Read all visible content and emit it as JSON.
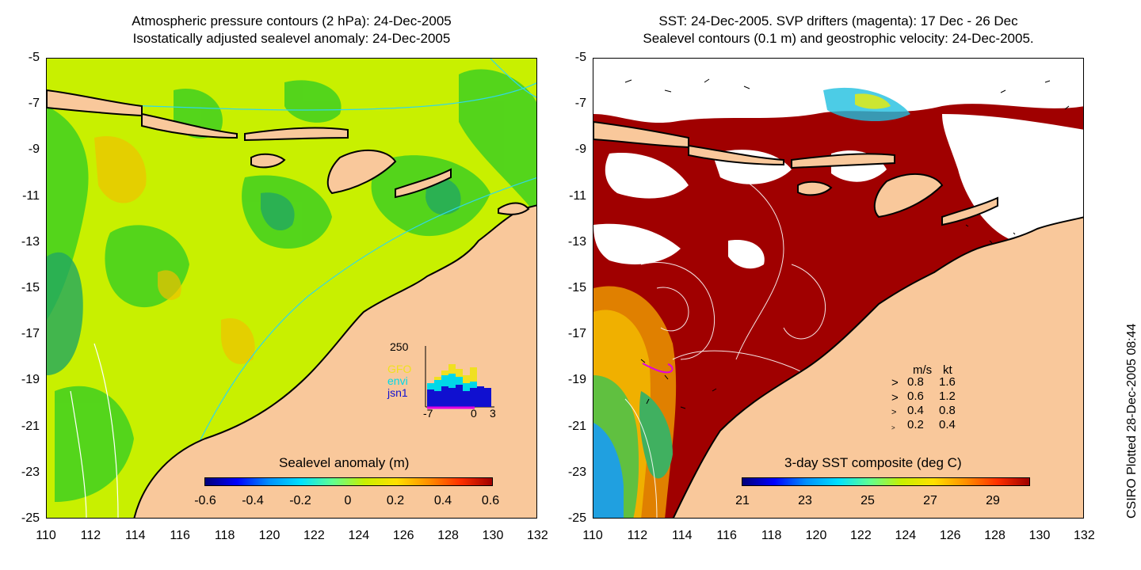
{
  "left_panel": {
    "title_line1": "Atmospheric pressure contours (2 hPa): 24-Dec-2005",
    "title_line2": "Isostatically adjusted sealevel anomaly: 24-Dec-2005",
    "colorbar_title": "Sealevel anomaly (m)",
    "colorbar_ticks": [
      "-0.6",
      "-0.4",
      "-0.2",
      "0",
      "0.2",
      "0.4",
      "0.6"
    ],
    "inset": {
      "ymax_label": "250",
      "x_ticks": [
        "-7",
        "0",
        "3"
      ],
      "series": [
        "GFO",
        "envi",
        "jsn1"
      ],
      "series_colors": [
        "#f0e020",
        "#00d8e8",
        "#1010d0"
      ]
    }
  },
  "right_panel": {
    "title_line1": "SST: 24-Dec-2005. SVP drifters (magenta): 17 Dec - 26 Dec",
    "title_line2": "Sealevel contours (0.1 m) and geostrophic velocity: 24-Dec-2005.",
    "colorbar_title": "3-day SST composite (deg C)",
    "colorbar_ticks": [
      "21",
      "23",
      "25",
      "27",
      "29"
    ],
    "velocity_legend": {
      "header_ms": "m/s",
      "header_kt": "kt",
      "rows": [
        {
          "ms": "0.8",
          "kt": "1.6"
        },
        {
          "ms": "0.6",
          "kt": "1.2"
        },
        {
          "ms": "0.4",
          "kt": "0.8"
        },
        {
          "ms": "0.2",
          "kt": "0.4"
        }
      ]
    }
  },
  "axes": {
    "y_ticks": [
      "-5",
      "-7",
      "-9",
      "-11",
      "-13",
      "-15",
      "-17",
      "-19",
      "-21",
      "-23",
      "-25"
    ],
    "x_ticks": [
      "110",
      "112",
      "114",
      "116",
      "118",
      "120",
      "122",
      "124",
      "126",
      "128",
      "130",
      "132"
    ]
  },
  "credit": "CSIRO Plotted 28-Dec-2005 08:44",
  "colors": {
    "land": "#f9c89b",
    "ssa_base": "#c8f000",
    "sst_hot": "#a00000",
    "cloud": "#ffffff"
  }
}
